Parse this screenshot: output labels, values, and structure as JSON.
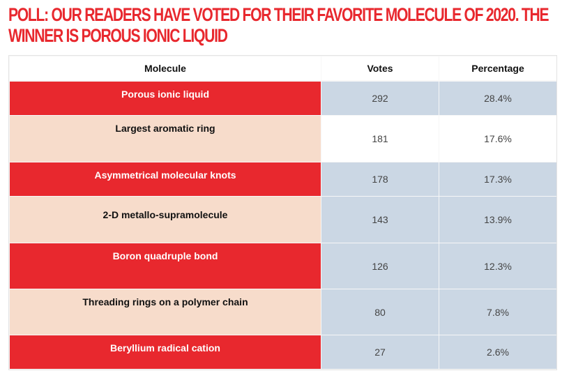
{
  "headline": "POLL: OUR READERS HAVE VOTED FOR THEIR FAVORITE MOLECULE OF 2020. THE WINNER IS POROUS IONIC LIQUID",
  "colors": {
    "accent_red": "#e8282e",
    "row_pink": "#f7dccb",
    "cell_blue": "#cbd7e4"
  },
  "chart_data": {
    "type": "table",
    "columns": [
      "Molecule",
      "Votes",
      "Percentage"
    ],
    "rows": [
      {
        "molecule": "Porous ionic liquid",
        "votes": "292",
        "percentage": "28.4%"
      },
      {
        "molecule": "Largest aromatic ring",
        "votes": "181",
        "percentage": "17.6%"
      },
      {
        "molecule": "Asymmetrical molecular knots",
        "votes": "178",
        "percentage": "17.3%"
      },
      {
        "molecule": "2-D metallo-supramolecule",
        "votes": "143",
        "percentage": "13.9%"
      },
      {
        "molecule": "Boron quadruple bond",
        "votes": "126",
        "percentage": "12.3%"
      },
      {
        "molecule": "Threading rings on a polymer chain",
        "votes": "80",
        "percentage": "7.8%"
      },
      {
        "molecule": "Beryllium radical cation",
        "votes": "27",
        "percentage": "2.6%"
      }
    ]
  }
}
